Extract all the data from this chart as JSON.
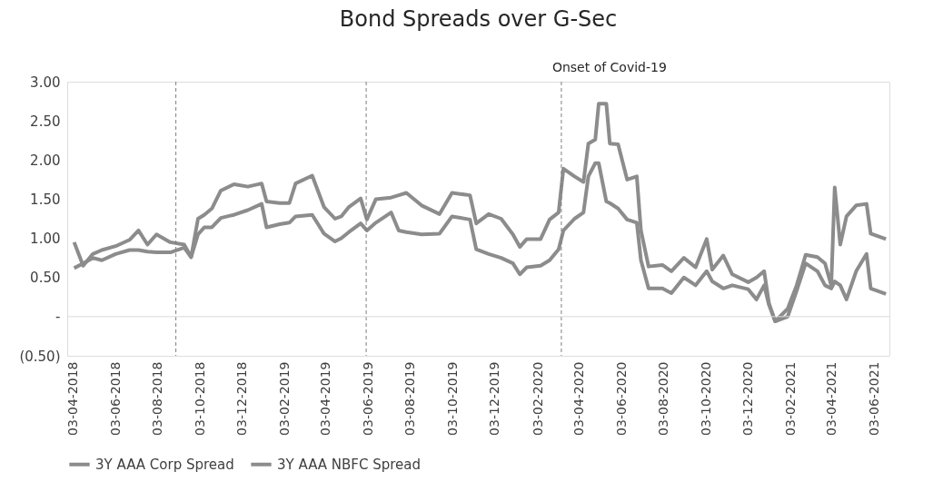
{
  "chart_data": {
    "type": "line",
    "title": "Bond Spreads over G-Sec",
    "x": [
      "2018-04-04",
      "2018-04-17",
      "2018-05-01",
      "2018-05-14",
      "2018-06-03",
      "2018-06-23",
      "2018-07-06",
      "2018-07-19",
      "2018-08-01",
      "2018-08-21",
      "2018-09-10",
      "2018-09-20",
      "2018-09-30",
      "2018-10-09",
      "2018-10-20",
      "2018-11-02",
      "2018-11-21",
      "2018-12-11",
      "2018-12-31",
      "2019-01-07",
      "2019-01-26",
      "2019-02-09",
      "2019-02-18",
      "2019-03-14",
      "2019-03-31",
      "2019-04-16",
      "2019-04-25",
      "2019-05-06",
      "2019-05-23",
      "2019-06-01",
      "2019-06-14",
      "2019-07-06",
      "2019-07-17",
      "2019-07-28",
      "2019-08-19",
      "2019-09-14",
      "2019-10-02",
      "2019-10-28",
      "2019-11-06",
      "2019-11-24",
      "2019-12-12",
      "2019-12-29",
      "2020-01-08",
      "2020-01-18",
      "2020-02-07",
      "2020-02-20",
      "2020-03-04",
      "2020-03-11",
      "2020-03-27",
      "2020-04-09",
      "2020-04-16",
      "2020-04-26",
      "2020-05-01",
      "2020-05-12",
      "2020-05-17",
      "2020-05-29",
      "2020-06-11",
      "2020-06-25",
      "2020-07-01",
      "2020-07-12",
      "2020-08-01",
      "2020-08-14",
      "2020-09-01",
      "2020-09-18",
      "2020-10-04",
      "2020-10-12",
      "2020-10-28",
      "2020-11-10",
      "2020-12-03",
      "2020-12-15",
      "2020-12-26",
      "2021-01-02",
      "2021-01-11",
      "2021-01-29",
      "2021-02-11",
      "2021-02-24",
      "2021-03-13",
      "2021-03-24",
      "2021-04-02",
      "2021-04-07",
      "2021-04-15",
      "2021-04-24",
      "2021-05-08",
      "2021-05-23",
      "2021-05-29",
      "2021-06-20"
    ],
    "series": [
      {
        "name": "3Y AAA Corp Spread",
        "color": "#8c8c8c",
        "values": [
          0.62,
          0.68,
          0.75,
          0.72,
          0.8,
          0.85,
          0.85,
          0.83,
          0.82,
          0.82,
          0.88,
          0.76,
          1.05,
          1.14,
          1.14,
          1.26,
          1.3,
          1.36,
          1.44,
          1.14,
          1.18,
          1.2,
          1.28,
          1.3,
          1.06,
          0.96,
          1.0,
          1.08,
          1.19,
          1.1,
          1.2,
          1.33,
          1.1,
          1.08,
          1.05,
          1.06,
          1.28,
          1.24,
          0.86,
          0.8,
          0.75,
          0.68,
          0.54,
          0.63,
          0.65,
          0.72,
          0.86,
          1.1,
          1.25,
          1.33,
          1.79,
          1.96,
          1.96,
          1.47,
          1.45,
          1.38,
          1.24,
          1.2,
          0.72,
          0.36,
          0.36,
          0.3,
          0.5,
          0.4,
          0.58,
          0.45,
          0.36,
          0.4,
          0.35,
          0.22,
          0.4,
          0.15,
          -0.06,
          0.0,
          0.33,
          0.68,
          0.58,
          0.4,
          0.36,
          0.45,
          0.4,
          0.22,
          0.58,
          0.8,
          0.36,
          0.29
        ]
      },
      {
        "name": "3Y AAA NBFC Spread",
        "color": "#8c8c8c",
        "values": [
          0.95,
          0.65,
          0.8,
          0.85,
          0.9,
          0.98,
          1.1,
          0.92,
          1.05,
          0.95,
          0.92,
          0.76,
          1.25,
          1.3,
          1.38,
          1.61,
          1.69,
          1.66,
          1.7,
          1.47,
          1.45,
          1.45,
          1.7,
          1.8,
          1.4,
          1.25,
          1.28,
          1.4,
          1.51,
          1.24,
          1.5,
          1.52,
          1.55,
          1.58,
          1.42,
          1.31,
          1.58,
          1.55,
          1.19,
          1.31,
          1.25,
          1.05,
          0.89,
          0.99,
          0.99,
          1.24,
          1.33,
          1.89,
          1.79,
          1.72,
          2.21,
          2.26,
          2.72,
          2.72,
          2.21,
          2.2,
          1.75,
          1.79,
          1.1,
          0.64,
          0.66,
          0.58,
          0.75,
          0.63,
          0.99,
          0.6,
          0.78,
          0.54,
          0.44,
          0.5,
          0.58,
          0.17,
          -0.06,
          0.1,
          0.4,
          0.79,
          0.76,
          0.68,
          0.4,
          1.65,
          0.92,
          1.28,
          1.42,
          1.44,
          1.06,
          0.99
        ]
      }
    ],
    "xlim": [
      "2018-03-25",
      "2021-06-25"
    ],
    "xticks": [
      {
        "value": "2018-04-03",
        "label": "03-04-2018"
      },
      {
        "value": "2018-06-03",
        "label": "03-06-2018"
      },
      {
        "value": "2018-08-03",
        "label": "03-08-2018"
      },
      {
        "value": "2018-10-03",
        "label": "03-10-2018"
      },
      {
        "value": "2018-12-03",
        "label": "03-12-2018"
      },
      {
        "value": "2019-02-03",
        "label": "03-02-2019"
      },
      {
        "value": "2019-04-03",
        "label": "03-04-2019"
      },
      {
        "value": "2019-06-03",
        "label": "03-06-2019"
      },
      {
        "value": "2019-08-03",
        "label": "03-08-2019"
      },
      {
        "value": "2019-10-03",
        "label": "03-10-2019"
      },
      {
        "value": "2019-12-03",
        "label": "03-12-2019"
      },
      {
        "value": "2020-02-03",
        "label": "03-02-2020"
      },
      {
        "value": "2020-04-03",
        "label": "03-04-2020"
      },
      {
        "value": "2020-06-03",
        "label": "03-06-2020"
      },
      {
        "value": "2020-08-03",
        "label": "03-08-2020"
      },
      {
        "value": "2020-10-03",
        "label": "03-10-2020"
      },
      {
        "value": "2020-12-03",
        "label": "03-12-2020"
      },
      {
        "value": "2021-02-03",
        "label": "03-02-2021"
      },
      {
        "value": "2021-04-03",
        "label": "03-04-2021"
      },
      {
        "value": "2021-06-03",
        "label": "03-06-2021"
      }
    ],
    "ylim": [
      -0.5,
      3.0
    ],
    "yticks": [
      {
        "value": 3.0,
        "label": "3.00"
      },
      {
        "value": 2.5,
        "label": "2.50"
      },
      {
        "value": 2.0,
        "label": "2.00"
      },
      {
        "value": 1.5,
        "label": "1.50"
      },
      {
        "value": 1.0,
        "label": "1.00"
      },
      {
        "value": 0.5,
        "label": "0.50"
      },
      {
        "value": 0,
        "label": "-"
      },
      {
        "value": -0.5,
        "label": "(0.50)"
      }
    ],
    "ref_lines": [
      {
        "axis": "x",
        "value": "2018-08-29",
        "label": null,
        "color": "#7f7f7f",
        "line_style": "dashed"
      },
      {
        "axis": "x",
        "value": "2019-05-31",
        "label": null,
        "color": "#7f7f7f",
        "line_style": "dashed"
      },
      {
        "axis": "x",
        "value": "2020-03-08",
        "label": "Onset of Covid-19",
        "color": "#7f7f7f",
        "line_style": "dashed"
      },
      {
        "axis": "y",
        "value": 0,
        "label": null,
        "color": "#d9d9d9",
        "line_style": "solid"
      }
    ],
    "grid": false,
    "legend": "bottom",
    "marker": "none",
    "line_style": "solid"
  }
}
